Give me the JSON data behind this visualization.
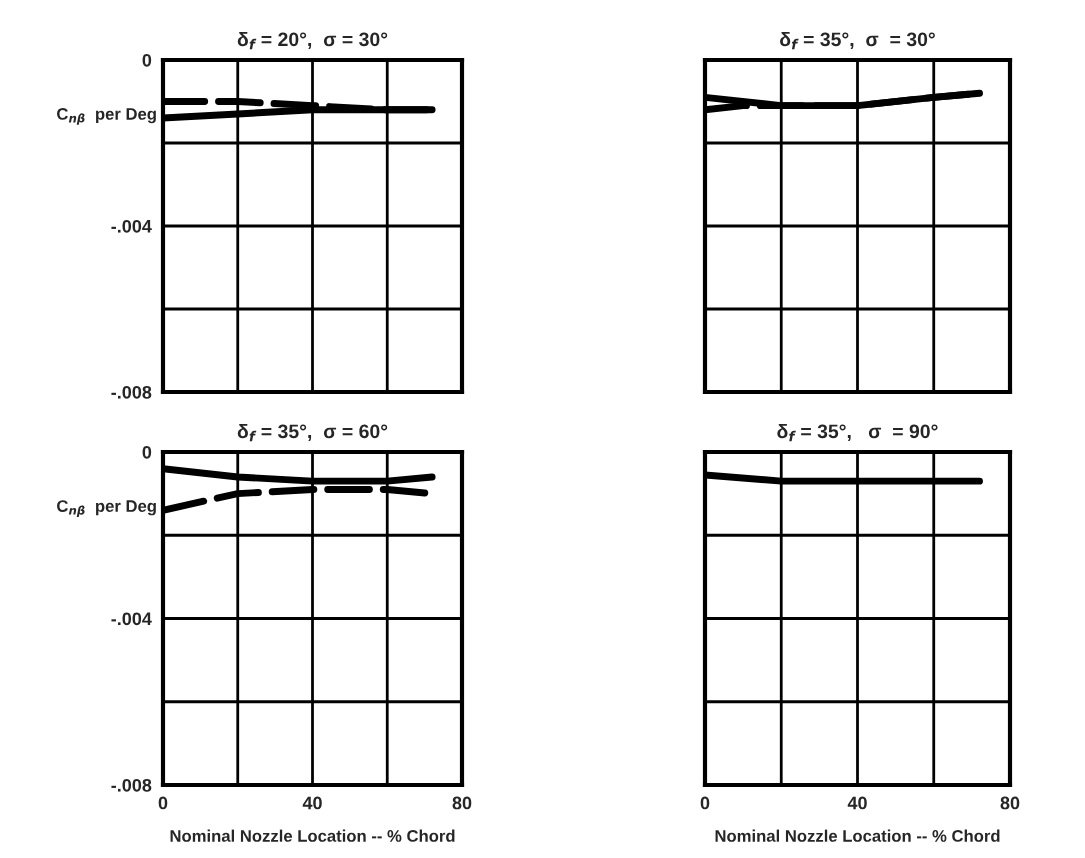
{
  "chart_data": [
    {
      "type": "line",
      "title": "δ$_{f}$ = 20°,  σ = 30°",
      "ylabel": "C$_{nβ}$  per Deg",
      "xlim": [
        0,
        80
      ],
      "ylim": [
        -0.008,
        0
      ],
      "xticks": [
        {
          "value": 0,
          "label": null
        },
        {
          "value": 20,
          "label": null
        },
        {
          "value": 40,
          "label": null
        },
        {
          "value": 60,
          "label": null
        },
        {
          "value": 80,
          "label": null
        }
      ],
      "yticks": [
        {
          "value": -0.008,
          "label": "-.008"
        },
        {
          "value": -0.006,
          "label": null
        },
        {
          "value": -0.004,
          "label": "-.004"
        },
        {
          "value": -0.002,
          "label": null
        },
        {
          "value": 0,
          "label": "0"
        }
      ],
      "grid": true,
      "tick_labels": "y",
      "series": [
        {
          "color": "#000000",
          "line_style": "dashed",
          "x": [
            0,
            20,
            40,
            60,
            72
          ],
          "values": [
            -0.001,
            -0.001,
            -0.0011,
            -0.0012,
            -0.0012
          ]
        },
        {
          "color": "#000000",
          "line_style": "solid",
          "x": [
            0,
            20,
            40,
            60,
            72
          ],
          "values": [
            -0.0014,
            -0.0013,
            -0.0012,
            -0.0012,
            -0.0012
          ]
        }
      ]
    },
    {
      "type": "line",
      "title": "δ$_{f}$ = 35°,  σ  = 30°",
      "xlim": [
        0,
        80
      ],
      "ylim": [
        -0.008,
        0
      ],
      "xticks": [
        {
          "value": 0,
          "label": null
        },
        {
          "value": 20,
          "label": null
        },
        {
          "value": 40,
          "label": null
        },
        {
          "value": 60,
          "label": null
        },
        {
          "value": 80,
          "label": null
        }
      ],
      "yticks": [
        {
          "value": -0.008,
          "label": null
        },
        {
          "value": -0.006,
          "label": null
        },
        {
          "value": -0.004,
          "label": null
        },
        {
          "value": -0.002,
          "label": null
        },
        {
          "value": 0,
          "label": null
        }
      ],
      "grid": true,
      "tick_labels": false,
      "series": [
        {
          "color": "#000000",
          "line_style": "solid",
          "x": [
            0,
            20,
            40,
            60,
            72
          ],
          "values": [
            -0.0009,
            -0.0011,
            -0.0011,
            -0.0009,
            -0.0008
          ]
        },
        {
          "color": "#000000",
          "line_style": "dashed",
          "x": [
            0,
            10,
            20,
            40,
            60,
            72
          ],
          "values": [
            -0.0012,
            -0.0011,
            -0.0011,
            -0.0011,
            -0.0009,
            -0.0008
          ]
        }
      ]
    },
    {
      "type": "line",
      "title": "δ$_{f}$ = 35°,  σ = 60°",
      "ylabel": "C$_{nβ}$  per Deg",
      "xlabel": "Nominal Nozzle Location -- % Chord",
      "xlim": [
        0,
        80
      ],
      "ylim": [
        -0.008,
        0
      ],
      "xticks": [
        0,
        {
          "value": 20,
          "label": null
        },
        40,
        {
          "value": 60,
          "label": null
        },
        80
      ],
      "yticks": [
        {
          "value": -0.008,
          "label": "-.008"
        },
        {
          "value": -0.006,
          "label": null
        },
        {
          "value": -0.004,
          "label": "-.004"
        },
        {
          "value": -0.002,
          "label": null
        },
        {
          "value": 0,
          "label": "0"
        }
      ],
      "grid": true,
      "series": [
        {
          "color": "#000000",
          "line_style": "solid",
          "x": [
            0,
            20,
            40,
            60,
            72
          ],
          "values": [
            -0.0004,
            -0.0006,
            -0.0007,
            -0.0007,
            -0.0006
          ]
        },
        {
          "color": "#000000",
          "line_style": "dashed",
          "x": [
            0,
            10,
            20,
            40,
            60,
            72
          ],
          "values": [
            -0.0014,
            -0.0012,
            -0.001,
            -0.0009,
            -0.0009,
            -0.001
          ]
        }
      ]
    },
    {
      "type": "line",
      "title": "δ$_{f}$ = 35°,   σ  = 90°",
      "xlabel": "Nominal Nozzle Location -- % Chord",
      "xlim": [
        0,
        80
      ],
      "ylim": [
        -0.008,
        0
      ],
      "xticks": [
        0,
        {
          "value": 20,
          "label": null
        },
        40,
        {
          "value": 60,
          "label": null
        },
        80
      ],
      "yticks": [
        {
          "value": -0.008,
          "label": null
        },
        {
          "value": -0.006,
          "label": null
        },
        {
          "value": -0.004,
          "label": null
        },
        {
          "value": -0.002,
          "label": null
        },
        {
          "value": 0,
          "label": null
        }
      ],
      "grid": true,
      "tick_labels": "x",
      "series": [
        {
          "color": "#000000",
          "line_style": "solid",
          "x": [
            0,
            20,
            40,
            60,
            72
          ],
          "values": [
            -0.00055,
            -0.0007,
            -0.0007,
            -0.0007,
            -0.0007
          ]
        }
      ]
    }
  ]
}
